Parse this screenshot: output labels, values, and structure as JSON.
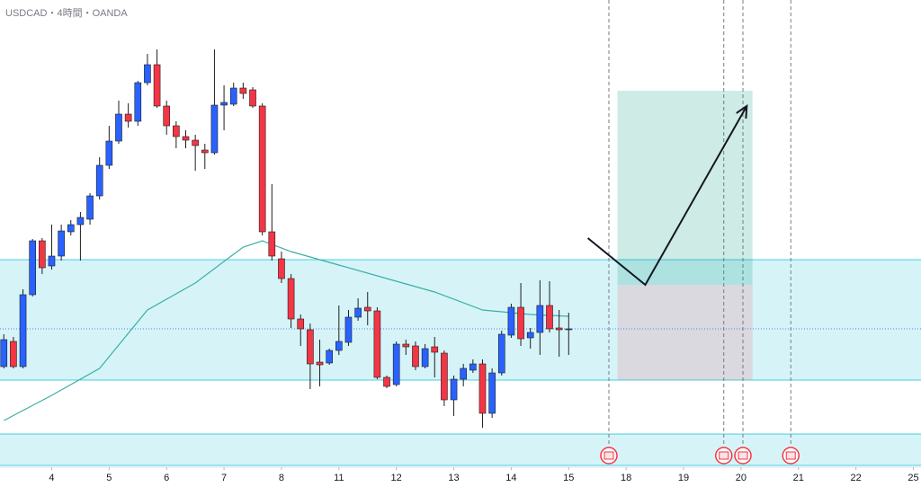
{
  "chart_data": {
    "type": "candlestick",
    "title": "USDCAD・4時間・OANDA",
    "up_color": "#2962ff",
    "down_color": "#f23645",
    "wick_color": "#1e1e1e",
    "xlim": [
      -0.4,
      95.8
    ],
    "ylim": [
      1.354,
      1.38
    ],
    "xticks": [
      {
        "value": 5,
        "label": "4"
      },
      {
        "value": 11,
        "label": "5"
      },
      {
        "value": 17,
        "label": "6"
      },
      {
        "value": 23,
        "label": "7"
      },
      {
        "value": 29,
        "label": "8"
      },
      {
        "value": 35,
        "label": "11"
      },
      {
        "value": 41,
        "label": "12"
      },
      {
        "value": 47,
        "label": "13"
      },
      {
        "value": 53,
        "label": "14"
      },
      {
        "value": 59,
        "label": "15"
      },
      {
        "value": 65,
        "label": "18"
      },
      {
        "value": 71,
        "label": "19"
      },
      {
        "value": 77,
        "label": "20"
      },
      {
        "value": 83,
        "label": "21"
      },
      {
        "value": 89,
        "label": "22"
      },
      {
        "value": 95,
        "label": "25"
      }
    ],
    "open": [
      1.3596,
      1.361,
      1.3596,
      1.3636,
      1.3666,
      1.3652,
      1.36575,
      1.3671,
      1.3675,
      1.3678,
      1.3691,
      1.3708,
      1.37215,
      1.37365,
      1.37325,
      1.3754,
      1.3764,
      1.3741,
      1.373,
      1.3724,
      1.3722,
      1.37165,
      1.3715,
      1.37415,
      1.3742,
      1.3751,
      1.375,
      1.3741,
      1.3671,
      1.3656,
      1.3645,
      1.36225,
      1.36165,
      1.35985,
      1.3598,
      1.3605,
      1.36095,
      1.36235,
      1.3629,
      1.3627,
      1.359,
      1.3586,
      1.36085,
      1.36075,
      1.3596,
      1.3607,
      1.36035,
      1.35775,
      1.3589,
      1.3594,
      1.35975,
      1.357,
      1.35925,
      1.36135,
      1.3629,
      1.3612,
      1.3615,
      1.363,
      1.36175,
      1.3617
    ],
    "high": [
      1.3614,
      1.36125,
      1.3639,
      1.3667,
      1.36675,
      1.3675,
      1.3675,
      1.36775,
      1.3682,
      1.36925,
      1.37125,
      1.373,
      1.3744,
      1.37425,
      1.3755,
      1.377,
      1.37725,
      1.3744,
      1.37325,
      1.37275,
      1.3725,
      1.372,
      1.37725,
      1.37525,
      1.3754,
      1.3754,
      1.37515,
      1.37425,
      1.36975,
      1.366,
      1.36475,
      1.3625,
      1.362,
      1.3611,
      1.3606,
      1.363,
      1.36275,
      1.3634,
      1.36375,
      1.3629,
      1.3591,
      1.361,
      1.3611,
      1.361,
      1.36085,
      1.36125,
      1.3605,
      1.3591,
      1.35975,
      1.36,
      1.36,
      1.3595,
      1.3616,
      1.3631,
      1.36425,
      1.36175,
      1.3644,
      1.36435,
      1.36275,
      1.3626
    ],
    "low": [
      1.3595,
      1.3595,
      1.3595,
      1.3635,
      1.36475,
      1.365,
      1.3655,
      1.3669,
      1.3655,
      1.3675,
      1.3689,
      1.3706,
      1.372,
      1.3729,
      1.373,
      1.37525,
      1.374,
      1.3725,
      1.37175,
      1.37175,
      1.3705,
      1.3706,
      1.3714,
      1.37275,
      1.3741,
      1.3745,
      1.374,
      1.3669,
      1.3655,
      1.36425,
      1.36175,
      1.36075,
      1.35835,
      1.3585,
      1.3597,
      1.36025,
      1.36075,
      1.36215,
      1.3619,
      1.3589,
      1.3584,
      1.3585,
      1.36025,
      1.3594,
      1.3595,
      1.359,
      1.3574,
      1.35685,
      1.3585,
      1.35925,
      1.3562,
      1.35675,
      1.3591,
      1.3612,
      1.36075,
      1.3606,
      1.36025,
      1.3615,
      1.36015,
      1.36025
    ],
    "close": [
      1.3611,
      1.3596,
      1.3636,
      1.3666,
      1.3651,
      1.36575,
      1.36715,
      1.3675,
      1.3679,
      1.3691,
      1.3708,
      1.37215,
      1.37365,
      1.37325,
      1.3754,
      1.3764,
      1.3741,
      1.373,
      1.3724,
      1.3722,
      1.3719,
      1.3715,
      1.37415,
      1.3743,
      1.3751,
      1.3748,
      1.3741,
      1.3671,
      1.36575,
      1.3645,
      1.36225,
      1.3617,
      1.35975,
      1.3597,
      1.3605,
      1.361,
      1.36235,
      1.36285,
      1.3627,
      1.359,
      1.3585,
      1.36085,
      1.3607,
      1.3596,
      1.3606,
      1.3604,
      1.35775,
      1.3589,
      1.3595,
      1.35975,
      1.357,
      1.35925,
      1.3614,
      1.3629,
      1.36115,
      1.3615,
      1.363,
      1.3617,
      1.36165,
      1.3617
    ],
    "ma": {
      "color": "#3aafa4",
      "x": [
        0,
        5,
        10,
        15,
        20,
        25,
        27,
        30,
        35,
        40,
        45,
        50,
        55,
        59
      ],
      "values": [
        1.3566,
        1.358,
        1.3595,
        1.36275,
        1.36425,
        1.36625,
        1.3666,
        1.366,
        1.36525,
        1.3645,
        1.36375,
        1.36275,
        1.3625,
        1.3624
      ]
    },
    "zones": [
      {
        "top": 1.36555,
        "bottom": 1.35885
      },
      {
        "top": 1.35585,
        "bottom": 1.3541
      }
    ],
    "zone_color": "#00bcd4",
    "price_line": 1.3617,
    "position": {
      "x": [
        64.1,
        78.2
      ],
      "entry": 1.36415,
      "target": 1.37495,
      "stop": 1.35885
    },
    "arrow": {
      "x": [
        61.0,
        67.0,
        77.6
      ],
      "values": [
        1.36675,
        1.36415,
        1.3741
      ]
    },
    "event_x": [
      63.2,
      75.2,
      77.2,
      82.2
    ]
  }
}
